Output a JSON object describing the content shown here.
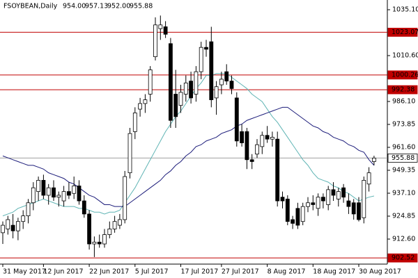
{
  "chart_data": {
    "type": "candlestick",
    "title": "FSOYBEAN,Daily",
    "header_values": [
      "954.00",
      "957.13",
      "952.00",
      "955.88"
    ],
    "categories": [
      "31 May 2017",
      null,
      null,
      null,
      null,
      null,
      null,
      null,
      "12 Jun 2017",
      null,
      null,
      null,
      null,
      null,
      null,
      null,
      null,
      "22 Jun 2017",
      null,
      null,
      null,
      null,
      null,
      null,
      null,
      null,
      "5 Jul 2017",
      null,
      null,
      null,
      null,
      null,
      null,
      null,
      null,
      "17 Jul 2017",
      null,
      null,
      null,
      null,
      null,
      null,
      null,
      "27 Jul 2017",
      null,
      null,
      null,
      null,
      null,
      null,
      null,
      null,
      "8 Aug 2017",
      null,
      null,
      null,
      null,
      null,
      null,
      null,
      null,
      "18 Aug 2017",
      null,
      null,
      null,
      null,
      null,
      null,
      null,
      null,
      "30 Aug 2017",
      null,
      null,
      null
    ],
    "open": [
      916,
      918,
      920,
      917,
      922,
      925,
      932,
      938,
      944,
      936,
      940,
      935,
      933,
      938,
      937,
      941,
      933,
      926,
      910,
      911,
      910,
      915,
      918,
      920,
      923,
      948,
      970,
      982,
      985,
      990,
      1010,
      1025,
      1026,
      1017,
      990,
      984,
      990,
      997,
      990,
      1002,
      1015,
      1018,
      988,
      995,
      1002,
      997,
      988,
      970,
      970,
      955,
      958,
      962,
      968,
      966,
      966,
      935,
      934,
      923,
      929,
      922,
      930,
      932,
      929,
      935,
      931,
      939,
      934,
      940,
      933,
      932,
      932,
      924,
      942,
      954
    ],
    "high": [
      922,
      925,
      926,
      924,
      928,
      934,
      943,
      946,
      947,
      942,
      944,
      938,
      941,
      943,
      946,
      944,
      936,
      928,
      914,
      915,
      918,
      922,
      925,
      926,
      949,
      972,
      983,
      988,
      990,
      1005,
      1031,
      1032,
      1029,
      1020,
      1003,
      995,
      1000,
      1002,
      1005,
      1018,
      1019,
      1026,
      997,
      1002,
      1006,
      1000,
      991,
      974,
      972,
      958,
      966,
      970,
      973,
      970,
      970,
      938,
      936,
      925,
      932,
      932,
      935,
      936,
      937,
      937,
      941,
      943,
      940,
      942,
      937,
      934,
      935,
      946,
      951,
      957.13
    ],
    "low": [
      910,
      915,
      913,
      912,
      918,
      921,
      928,
      933,
      934,
      931,
      933,
      930,
      930,
      934,
      934,
      931,
      924,
      907,
      903,
      908,
      908,
      913,
      916,
      918,
      921,
      945,
      966,
      978,
      980,
      986,
      1008,
      1019,
      1020,
      972,
      972,
      980,
      986,
      985,
      986,
      998,
      1010,
      983,
      979,
      990,
      995,
      990,
      962,
      962,
      950,
      950,
      956,
      958,
      964,
      962,
      930,
      929,
      920,
      918,
      918,
      920,
      927,
      928,
      925,
      929,
      928,
      933,
      930,
      932,
      926,
      923,
      922,
      921,
      938,
      952
    ],
    "close": [
      920,
      923,
      917,
      922,
      925,
      932,
      940,
      944,
      936,
      940,
      935,
      936,
      938,
      936,
      941,
      933,
      926,
      910,
      911,
      910,
      915,
      918,
      922,
      923,
      946,
      969,
      980,
      985,
      987,
      1003,
      1027,
      1027,
      1022,
      976,
      978,
      991,
      996,
      988,
      1002,
      1015,
      1014,
      987,
      994,
      998,
      997,
      993,
      965,
      964,
      955,
      954,
      963,
      968,
      966,
      967,
      933,
      933,
      922,
      921,
      920,
      930,
      932,
      931,
      935,
      933,
      939,
      936,
      938,
      935,
      930,
      926,
      923,
      944,
      948,
      955.88
    ],
    "up_color": "#ffffff",
    "down_color": "#000000",
    "outline_color": "#000000",
    "moving_averages": [
      {
        "color": "#5fb4b4",
        "values": [
          925,
          926,
          927,
          929,
          930,
          931,
          932,
          933,
          934,
          933,
          932,
          931,
          930,
          930,
          930,
          929,
          929,
          928,
          927,
          927,
          926,
          927,
          927,
          928,
          932,
          936,
          940,
          945,
          950,
          955,
          960,
          965,
          970,
          974,
          978,
          981,
          985,
          989,
          993,
          996,
          1000,
          1000,
          1001,
          1001,
          1001,
          999,
          997,
          995,
          993,
          990,
          988,
          986,
          982,
          978,
          975,
          971,
          967,
          963,
          959,
          955,
          952,
          948,
          945,
          944,
          943,
          941,
          940,
          938,
          937,
          935,
          933,
          934,
          935,
          935.6
        ]
      },
      {
        "color": "#1c1c7a",
        "values": [
          957,
          956,
          955,
          954,
          953,
          952,
          952,
          951,
          950,
          948,
          947,
          946,
          945,
          943,
          942,
          940,
          938,
          936,
          935,
          933,
          931,
          931,
          930,
          930,
          930,
          932,
          934,
          936,
          938,
          940,
          942,
          944,
          947,
          949,
          952,
          954,
          957,
          959,
          962,
          963,
          965,
          966,
          967,
          969,
          970,
          971,
          973,
          974,
          976,
          977,
          978,
          979,
          980,
          981,
          982,
          983,
          983,
          981,
          979,
          977,
          975,
          973,
          972,
          970,
          969,
          967,
          966,
          965,
          963,
          962,
          960,
          959,
          955,
          952
        ]
      }
    ],
    "levels": [
      {
        "value": 1023.07,
        "color": "#c00000"
      },
      {
        "value": 1000.26,
        "color": "#c00000"
      },
      {
        "value": 992.38,
        "color": "#c00000"
      },
      {
        "value": 955.88,
        "color": "#a0a0a0"
      },
      {
        "value": 902.52,
        "color": "#c00000"
      }
    ],
    "ylim": [
      899.24,
      1040.3
    ],
    "yticks": [
      {
        "value": 1035.1,
        "label": "1035.10"
      },
      {
        "value": 1010.6,
        "label": "1010.60"
      },
      {
        "value": 986.1,
        "label": "986.10"
      },
      973.85,
      {
        "value": 961.6,
        "label": "961.60"
      },
      949.35,
      {
        "value": 937.1,
        "label": "937.10"
      },
      924.85,
      {
        "value": 912.6,
        "label": "912.60"
      }
    ],
    "grid": false
  }
}
